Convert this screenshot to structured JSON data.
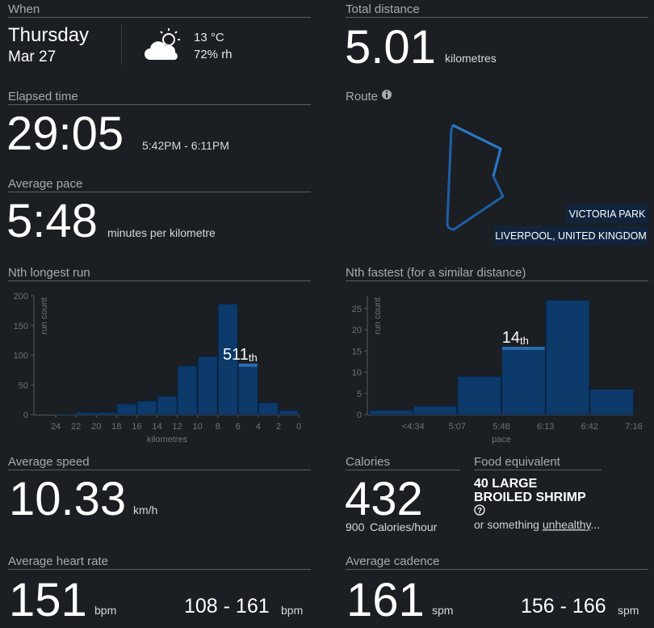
{
  "when": {
    "label": "When",
    "day": "Thursday",
    "date": "Mar 27",
    "temperature": "13 °C",
    "humidity": "72% rh"
  },
  "total_distance": {
    "label": "Total distance",
    "value": "5.01",
    "unit": "kilometres"
  },
  "elapsed_time": {
    "label": "Elapsed time",
    "value": "29:05",
    "range": "5:42PM - 6:11PM"
  },
  "route": {
    "label": "Route",
    "place": "VICTORIA PARK",
    "region": "LIVERPOOL, UNITED KINGDOM"
  },
  "average_pace": {
    "label": "Average pace",
    "value": "5:48",
    "unit": "minutes per kilometre"
  },
  "chart_data": [
    {
      "type": "histogram",
      "title": "Nth longest run",
      "ylabel": "run count",
      "xlabel": "kilometres",
      "bins": [
        24,
        22,
        20,
        18,
        16,
        14,
        12,
        10,
        8,
        6,
        4,
        2,
        0
      ],
      "values": [
        1,
        4,
        4,
        18,
        23,
        31,
        82,
        98,
        186,
        86,
        20,
        7
      ],
      "xlim": [
        26,
        0
      ],
      "xticks": [
        24,
        22,
        20,
        18,
        16,
        14,
        12,
        10,
        8,
        6,
        4,
        2,
        0
      ],
      "ylim": [
        0,
        200
      ],
      "yticks": [
        0,
        50,
        100,
        150,
        200
      ],
      "color": "#0c3a6b",
      "highlight": 9,
      "annotation": {
        "text": "511",
        "suffix": "th"
      }
    },
    {
      "type": "histogram",
      "title": "Nth fastest (for a similar distance)",
      "ylabel": "run count",
      "xlabel": "pace",
      "bin_labels": [
        null,
        "<4:34",
        "5:07",
        "5:48",
        "6:13",
        "6:42",
        "7:16"
      ],
      "values": [
        1,
        2,
        9,
        16,
        27,
        6
      ],
      "ylim": [
        0,
        28
      ],
      "yticks": [
        0,
        5,
        10,
        15,
        20,
        25
      ],
      "color": "#0c3a6b",
      "highlight": 3,
      "annotation": {
        "text": "14",
        "suffix": "th"
      }
    }
  ],
  "average_speed": {
    "label": "Average speed",
    "value": "10.33",
    "unit": "km/h"
  },
  "calories": {
    "label": "Calories",
    "value": "432",
    "rate": "900",
    "rate_unit": "Calories/hour"
  },
  "food_equivalent": {
    "label": "Food equivalent",
    "item_lines": [
      "40 LARGE",
      "BROILED SHRIMP"
    ],
    "help": "?",
    "note": "or something",
    "link": "unhealthy",
    "ellipsis": "..."
  },
  "average_heart_rate": {
    "label": "Average heart rate",
    "value": "151",
    "unit": "bpm",
    "range": "108 - 161",
    "range_unit": "bpm"
  },
  "average_cadence": {
    "label": "Average cadence",
    "value": "161",
    "unit": "spm",
    "range": "156 - 166",
    "range_unit": "spm"
  }
}
